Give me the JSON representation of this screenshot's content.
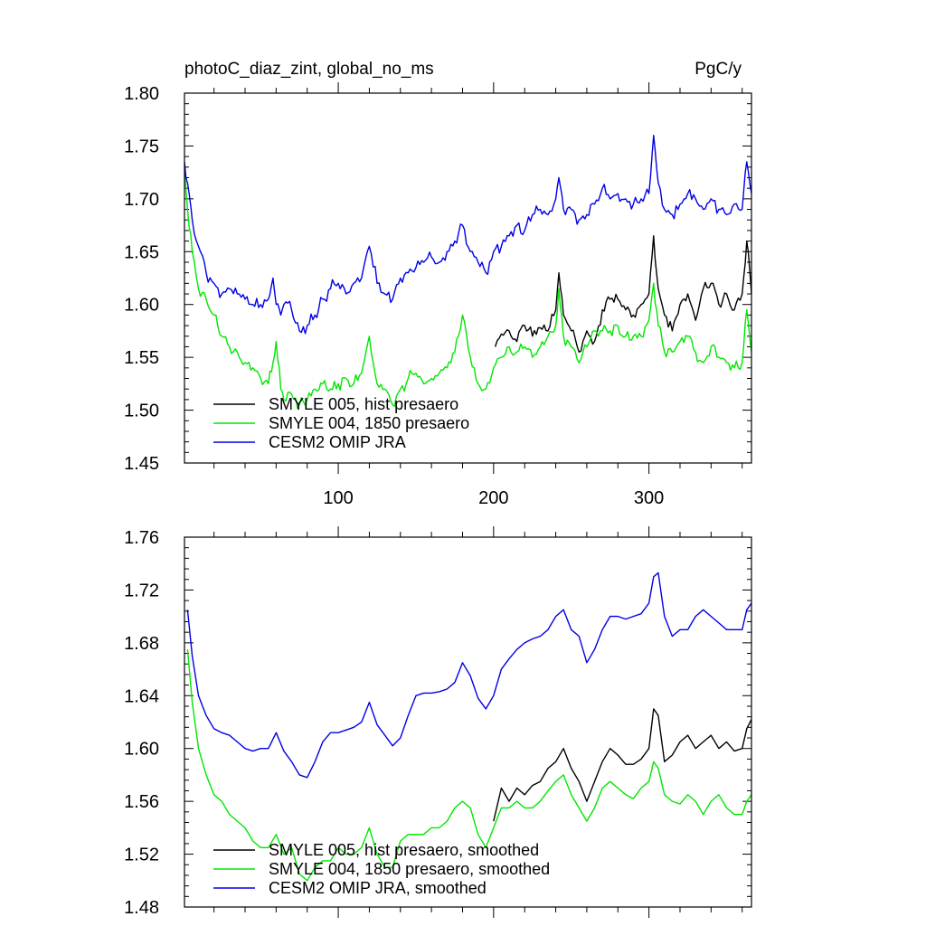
{
  "chart_data": [
    {
      "type": "line",
      "title": "photoC_diaz_zint, global_no_ms",
      "units": "PgC/y",
      "xlim": [
        1,
        366
      ],
      "ylim": [
        1.45,
        1.8
      ],
      "xticks": [
        100,
        200,
        300
      ],
      "xtick_labels": [
        "100",
        "200",
        "300"
      ],
      "yticks": [
        1.45,
        1.5,
        1.55,
        1.6,
        1.65,
        1.7,
        1.75,
        1.8
      ],
      "ytick_labels": [
        "1.45",
        "1.50",
        "1.55",
        "1.60",
        "1.65",
        "1.70",
        "1.75",
        "1.80"
      ],
      "legend_position": "bottom-left",
      "series": [
        {
          "name": "SMYLE 005, hist presaero",
          "color": "#000000",
          "x": [
            201,
            205,
            210,
            215,
            220,
            225,
            230,
            235,
            240,
            242,
            245,
            250,
            255,
            260,
            265,
            270,
            275,
            280,
            285,
            290,
            295,
            300,
            303,
            306,
            310,
            315,
            320,
            325,
            330,
            335,
            340,
            345,
            350,
            355,
            360,
            363,
            366
          ],
          "values": [
            1.56,
            1.572,
            1.575,
            1.565,
            1.58,
            1.57,
            1.578,
            1.575,
            1.595,
            1.63,
            1.59,
            1.575,
            1.555,
            1.575,
            1.565,
            1.595,
            1.605,
            1.605,
            1.595,
            1.59,
            1.6,
            1.61,
            1.665,
            1.615,
            1.59,
            1.575,
            1.6,
            1.61,
            1.585,
            1.615,
            1.62,
            1.6,
            1.61,
            1.595,
            1.61,
            1.66,
            1.61
          ]
        },
        {
          "name": "SMYLE 004, 1850 presaero",
          "color": "#00e600",
          "x": [
            1,
            3,
            6,
            10,
            15,
            20,
            25,
            30,
            35,
            40,
            45,
            50,
            55,
            58,
            60,
            63,
            65,
            70,
            75,
            80,
            85,
            90,
            95,
            100,
            105,
            110,
            115,
            120,
            125,
            130,
            135,
            140,
            145,
            150,
            155,
            160,
            165,
            170,
            175,
            180,
            185,
            190,
            195,
            200,
            205,
            210,
            215,
            220,
            225,
            230,
            235,
            240,
            242,
            245,
            250,
            255,
            260,
            265,
            270,
            275,
            280,
            285,
            290,
            295,
            300,
            303,
            306,
            310,
            315,
            320,
            325,
            330,
            335,
            340,
            345,
            350,
            355,
            360,
            363,
            366
          ],
          "values": [
            1.73,
            1.69,
            1.65,
            1.615,
            1.605,
            1.59,
            1.57,
            1.56,
            1.555,
            1.545,
            1.54,
            1.53,
            1.525,
            1.545,
            1.565,
            1.52,
            1.51,
            1.515,
            1.505,
            1.51,
            1.52,
            1.525,
            1.52,
            1.525,
            1.53,
            1.525,
            1.535,
            1.57,
            1.525,
            1.52,
            1.505,
            1.52,
            1.53,
            1.535,
            1.525,
            1.53,
            1.535,
            1.54,
            1.555,
            1.59,
            1.55,
            1.525,
            1.52,
            1.54,
            1.55,
            1.56,
            1.555,
            1.56,
            1.55,
            1.56,
            1.57,
            1.58,
            1.615,
            1.57,
            1.56,
            1.545,
            1.56,
            1.575,
            1.575,
            1.575,
            1.58,
            1.57,
            1.57,
            1.57,
            1.585,
            1.62,
            1.58,
            1.555,
            1.555,
            1.565,
            1.57,
            1.555,
            1.545,
            1.56,
            1.55,
            1.545,
            1.54,
            1.545,
            1.595,
            1.555
          ]
        },
        {
          "name": "CESM2 OMIP JRA",
          "color": "#0000e6",
          "x": [
            1,
            3,
            6,
            10,
            15,
            20,
            25,
            30,
            35,
            40,
            45,
            50,
            55,
            58,
            60,
            63,
            65,
            70,
            75,
            80,
            85,
            90,
            95,
            100,
            105,
            110,
            115,
            120,
            125,
            130,
            135,
            140,
            145,
            150,
            155,
            160,
            165,
            170,
            175,
            180,
            185,
            190,
            195,
            200,
            205,
            210,
            215,
            220,
            225,
            230,
            235,
            240,
            242,
            245,
            250,
            255,
            260,
            265,
            270,
            275,
            280,
            285,
            290,
            295,
            300,
            303,
            306,
            310,
            315,
            320,
            325,
            330,
            335,
            340,
            345,
            350,
            355,
            360,
            363,
            366
          ],
          "values": [
            1.735,
            1.715,
            1.68,
            1.655,
            1.63,
            1.62,
            1.61,
            1.615,
            1.61,
            1.605,
            1.6,
            1.6,
            1.605,
            1.625,
            1.6,
            1.59,
            1.6,
            1.595,
            1.575,
            1.58,
            1.59,
            1.605,
            1.615,
            1.62,
            1.61,
            1.62,
            1.625,
            1.655,
            1.62,
            1.61,
            1.605,
            1.625,
            1.63,
            1.635,
            1.64,
            1.645,
            1.64,
            1.65,
            1.66,
            1.675,
            1.65,
            1.64,
            1.63,
            1.65,
            1.655,
            1.665,
            1.675,
            1.67,
            1.685,
            1.69,
            1.685,
            1.7,
            1.72,
            1.69,
            1.69,
            1.68,
            1.685,
            1.695,
            1.71,
            1.7,
            1.705,
            1.7,
            1.695,
            1.7,
            1.705,
            1.76,
            1.715,
            1.69,
            1.685,
            1.695,
            1.705,
            1.7,
            1.69,
            1.7,
            1.69,
            1.685,
            1.695,
            1.69,
            1.735,
            1.705
          ]
        }
      ]
    },
    {
      "type": "line",
      "title": "",
      "units": "",
      "xlim": [
        1,
        366
      ],
      "ylim": [
        1.48,
        1.76
      ],
      "xticks": [
        100,
        200,
        300
      ],
      "xtick_labels": [
        "",
        "",
        ""
      ],
      "yticks": [
        1.48,
        1.52,
        1.56,
        1.6,
        1.64,
        1.68,
        1.72,
        1.76
      ],
      "ytick_labels": [
        "1.48",
        "1.52",
        "1.56",
        "1.60",
        "1.64",
        "1.68",
        "1.72",
        "1.76"
      ],
      "legend_position": "bottom-left",
      "series": [
        {
          "name": "SMYLE 005, hist presaero, smoothed",
          "color": "#000000",
          "x": [
            200,
            205,
            210,
            215,
            220,
            225,
            230,
            235,
            240,
            245,
            250,
            255,
            260,
            265,
            270,
            275,
            280,
            285,
            290,
            295,
            300,
            303,
            306,
            310,
            315,
            320,
            325,
            330,
            335,
            340,
            345,
            350,
            355,
            360,
            363,
            366
          ],
          "values": [
            1.545,
            1.57,
            1.56,
            1.57,
            1.565,
            1.572,
            1.575,
            1.585,
            1.59,
            1.6,
            1.585,
            1.575,
            1.56,
            1.575,
            1.59,
            1.6,
            1.595,
            1.588,
            1.588,
            1.592,
            1.6,
            1.63,
            1.625,
            1.59,
            1.595,
            1.605,
            1.61,
            1.6,
            1.605,
            1.61,
            1.6,
            1.605,
            1.598,
            1.6,
            1.615,
            1.622
          ]
        },
        {
          "name": "SMYLE 004, 1850 presaero, smoothed",
          "color": "#00e600",
          "x": [
            3,
            6,
            10,
            15,
            20,
            25,
            30,
            35,
            40,
            45,
            50,
            55,
            60,
            65,
            70,
            75,
            80,
            85,
            90,
            95,
            100,
            105,
            110,
            115,
            120,
            125,
            130,
            135,
            140,
            145,
            150,
            155,
            160,
            165,
            170,
            175,
            180,
            185,
            190,
            195,
            200,
            205,
            210,
            215,
            220,
            225,
            230,
            235,
            240,
            245,
            250,
            255,
            260,
            265,
            270,
            275,
            280,
            285,
            290,
            295,
            300,
            303,
            306,
            310,
            315,
            320,
            325,
            330,
            335,
            340,
            345,
            350,
            355,
            360,
            363,
            366
          ],
          "values": [
            1.675,
            1.635,
            1.6,
            1.58,
            1.565,
            1.56,
            1.55,
            1.545,
            1.54,
            1.53,
            1.525,
            1.525,
            1.535,
            1.52,
            1.525,
            1.505,
            1.5,
            1.51,
            1.515,
            1.515,
            1.525,
            1.52,
            1.52,
            1.525,
            1.54,
            1.52,
            1.51,
            1.51,
            1.53,
            1.535,
            1.535,
            1.535,
            1.54,
            1.54,
            1.545,
            1.555,
            1.56,
            1.555,
            1.535,
            1.525,
            1.54,
            1.555,
            1.555,
            1.56,
            1.555,
            1.555,
            1.56,
            1.568,
            1.575,
            1.58,
            1.565,
            1.555,
            1.545,
            1.555,
            1.57,
            1.575,
            1.57,
            1.565,
            1.562,
            1.57,
            1.575,
            1.59,
            1.585,
            1.565,
            1.56,
            1.558,
            1.565,
            1.56,
            1.55,
            1.56,
            1.565,
            1.555,
            1.55,
            1.55,
            1.56,
            1.565
          ]
        },
        {
          "name": "CESM2 OMIP JRA, smoothed",
          "color": "#0000e6",
          "x": [
            3,
            6,
            10,
            15,
            20,
            25,
            30,
            35,
            40,
            45,
            50,
            55,
            60,
            65,
            70,
            75,
            80,
            85,
            90,
            95,
            100,
            105,
            110,
            115,
            120,
            125,
            130,
            135,
            140,
            145,
            150,
            155,
            160,
            165,
            170,
            175,
            180,
            185,
            190,
            195,
            200,
            205,
            210,
            215,
            220,
            225,
            230,
            235,
            240,
            245,
            250,
            255,
            260,
            265,
            270,
            275,
            280,
            285,
            290,
            295,
            300,
            303,
            306,
            310,
            315,
            320,
            325,
            330,
            335,
            340,
            345,
            350,
            355,
            360,
            363,
            366
          ],
          "values": [
            1.705,
            1.67,
            1.64,
            1.625,
            1.615,
            1.612,
            1.61,
            1.605,
            1.6,
            1.598,
            1.6,
            1.6,
            1.612,
            1.598,
            1.59,
            1.58,
            1.578,
            1.59,
            1.605,
            1.612,
            1.612,
            1.614,
            1.616,
            1.62,
            1.635,
            1.618,
            1.61,
            1.602,
            1.608,
            1.625,
            1.64,
            1.642,
            1.642,
            1.643,
            1.645,
            1.65,
            1.665,
            1.655,
            1.638,
            1.63,
            1.64,
            1.66,
            1.668,
            1.675,
            1.68,
            1.683,
            1.685,
            1.69,
            1.7,
            1.705,
            1.69,
            1.685,
            1.665,
            1.675,
            1.69,
            1.7,
            1.7,
            1.698,
            1.7,
            1.702,
            1.71,
            1.73,
            1.733,
            1.7,
            1.685,
            1.69,
            1.69,
            1.7,
            1.705,
            1.7,
            1.695,
            1.69,
            1.69,
            1.69,
            1.705,
            1.71
          ]
        }
      ]
    }
  ]
}
